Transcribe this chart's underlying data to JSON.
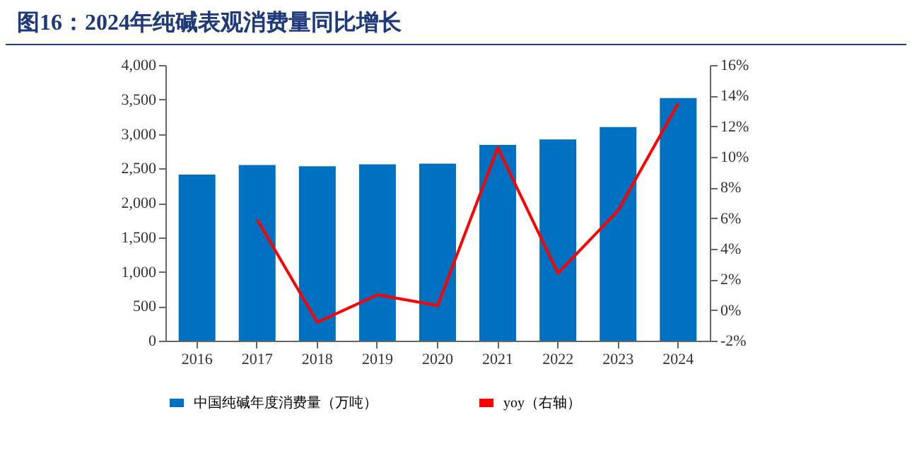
{
  "chart_data": {
    "type": "bar",
    "title": "图16：2024年纯碱表观消费量同比增长",
    "categories": [
      "2016",
      "2017",
      "2018",
      "2019",
      "2020",
      "2021",
      "2022",
      "2023",
      "2024"
    ],
    "series": [
      {
        "name": "中国纯碱年度消费量（万吨）",
        "color": "#0070c0",
        "values": [
          2410,
          2550,
          2530,
          2560,
          2570,
          2840,
          2920,
          3100,
          3520
        ]
      },
      {
        "name": "yoy（右轴）",
        "type": "line",
        "axis": "y2",
        "color": "#ff0000",
        "values": [
          null,
          5.9,
          -0.8,
          1.0,
          0.3,
          10.6,
          2.4,
          6.5,
          13.5
        ]
      }
    ],
    "ylim": [
      0,
      4000
    ],
    "yticks": [
      {
        "value": 0,
        "label": "0"
      },
      {
        "value": 500,
        "label": "500"
      },
      {
        "value": 1000,
        "label": "1,000"
      },
      {
        "value": 1500,
        "label": "1,500"
      },
      {
        "value": 2000,
        "label": "2,000"
      },
      {
        "value": 2500,
        "label": "2,500"
      },
      {
        "value": 3000,
        "label": "3,000"
      },
      {
        "value": 3500,
        "label": "3,500"
      },
      {
        "value": 4000,
        "label": "4,000"
      }
    ],
    "y2lim": [
      -2,
      16
    ],
    "y2ticks": [
      {
        "value": -2,
        "label": "-2%"
      },
      {
        "value": 0,
        "label": "0%"
      },
      {
        "value": 2,
        "label": "2%"
      },
      {
        "value": 4,
        "label": "4%"
      },
      {
        "value": 6,
        "label": "6%"
      },
      {
        "value": 8,
        "label": "8%"
      },
      {
        "value": 10,
        "label": "10%"
      },
      {
        "value": 12,
        "label": "12%"
      },
      {
        "value": 14,
        "label": "14%"
      },
      {
        "value": 16,
        "label": "16%"
      }
    ],
    "legend": "bottom",
    "grid": false
  }
}
